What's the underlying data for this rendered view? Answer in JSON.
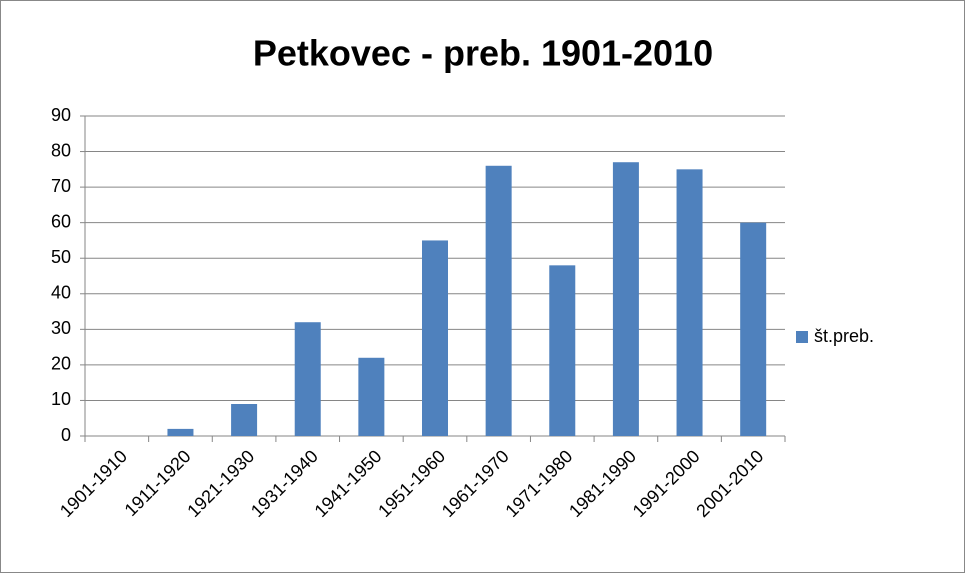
{
  "chart_data": {
    "type": "bar",
    "title": "Petkovec - preb. 1901-2010",
    "categories": [
      "1901-1910",
      "1911-1920",
      "1921-1930",
      "1931-1940",
      "1941-1950",
      "1951-1960",
      "1961-1970",
      "1971-1980",
      "1981-1990",
      "1991-2000",
      "2001-2010"
    ],
    "series": [
      {
        "name": "št.preb.",
        "color": "#4f81bd",
        "values": [
          0,
          2,
          9,
          32,
          22,
          55,
          76,
          48,
          77,
          75,
          60
        ]
      }
    ],
    "ylim": [
      0,
      90
    ],
    "yticks": [
      0,
      10,
      20,
      30,
      40,
      50,
      60,
      70,
      80,
      90
    ],
    "grid": true,
    "legend": "right"
  }
}
